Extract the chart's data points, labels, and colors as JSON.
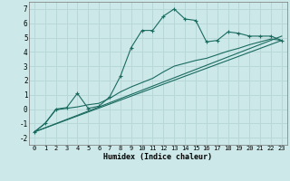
{
  "title": "",
  "xlabel": "Humidex (Indice chaleur)",
  "background_color": "#cce8e8",
  "grid_color": "#b8d8d8",
  "line_color": "#1a6b60",
  "xlim": [
    -0.5,
    23.5
  ],
  "ylim": [
    -2.5,
    7.5
  ],
  "xticks": [
    0,
    1,
    2,
    3,
    4,
    5,
    6,
    7,
    8,
    9,
    10,
    11,
    12,
    13,
    14,
    15,
    16,
    17,
    18,
    19,
    20,
    21,
    22,
    23
  ],
  "yticks": [
    -2,
    -1,
    0,
    1,
    2,
    3,
    4,
    5,
    6,
    7
  ],
  "series1_x": [
    0,
    1,
    2,
    3,
    4,
    5,
    6,
    7,
    8,
    9,
    10,
    11,
    12,
    13,
    14,
    15,
    16,
    17,
    18,
    19,
    20,
    21,
    22,
    23
  ],
  "series1_y": [
    -1.6,
    -1.0,
    0.0,
    0.1,
    1.1,
    0.05,
    0.2,
    0.85,
    2.3,
    4.3,
    5.5,
    5.5,
    6.5,
    7.0,
    6.3,
    6.2,
    4.7,
    4.8,
    5.4,
    5.3,
    5.1,
    5.1,
    5.1,
    4.8
  ],
  "series2_x": [
    0,
    1,
    2,
    3,
    4,
    5,
    6,
    7,
    8,
    9,
    10,
    11,
    12,
    13,
    14,
    15,
    16,
    17,
    18,
    19,
    20,
    21,
    22,
    23
  ],
  "series2_y": [
    -1.6,
    -1.0,
    -0.05,
    0.05,
    0.15,
    0.3,
    0.4,
    0.75,
    1.2,
    1.55,
    1.85,
    2.15,
    2.6,
    3.0,
    3.2,
    3.4,
    3.55,
    3.8,
    4.05,
    4.25,
    4.5,
    4.7,
    4.9,
    4.8
  ],
  "line3_x": [
    0,
    23
  ],
  "line3_y": [
    -1.6,
    4.8
  ],
  "line4_x": [
    0,
    23
  ],
  "line4_y": [
    -1.6,
    5.1
  ]
}
